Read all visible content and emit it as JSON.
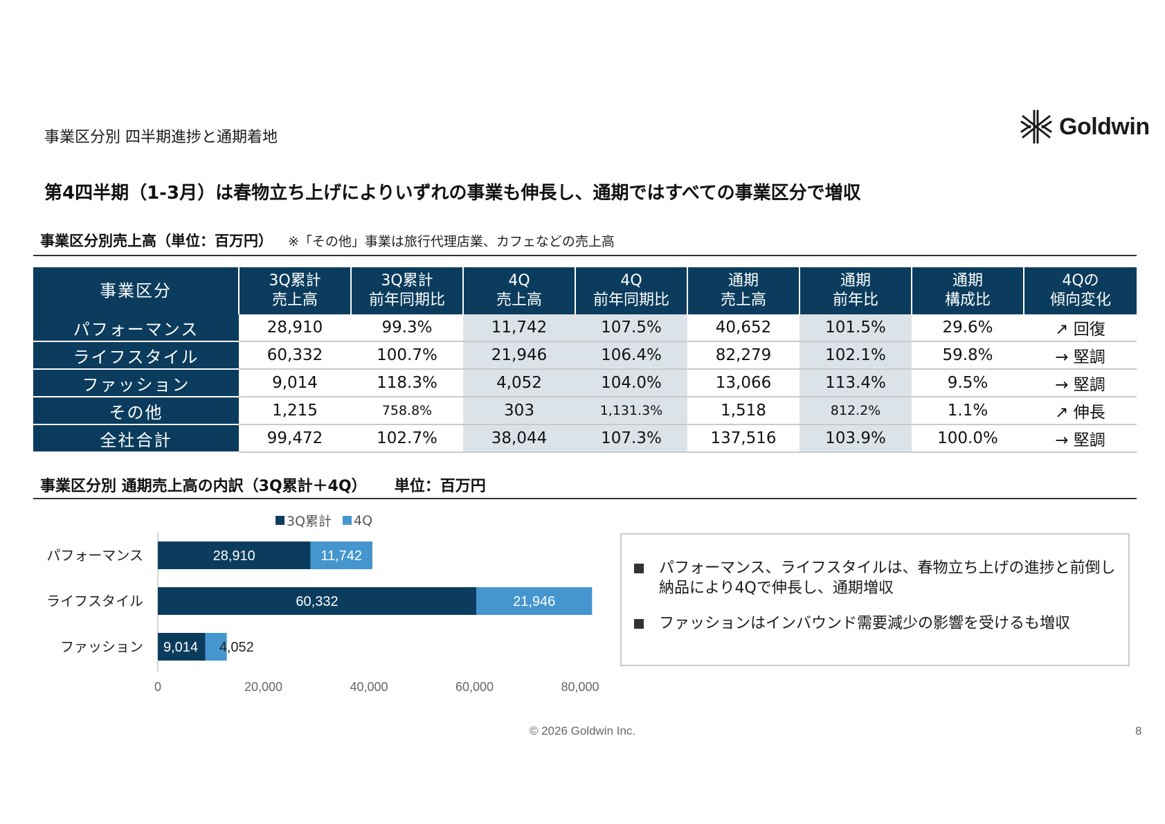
{
  "header": {
    "section_label": "事業区分別 四半期進捗と通期着地",
    "logo_text": "Goldwin",
    "headline": "第4四半期（1-3月）は春物立ち上げによりいずれの事業も伸長し、通期ではすべての事業区分で増収"
  },
  "table_section": {
    "title": "事業区分別売上高（単位：百万円）",
    "note": "※「その他」事業は旅行代理店業、カフェなどの売上高"
  },
  "table": {
    "headers": [
      "事業区分",
      "3Q累計\n売上高",
      "3Q累計\n前年同期比",
      "4Q\n売上高",
      "4Q\n前年同期比",
      "通期\n売上高",
      "通期\n前年比",
      "通期\n構成比",
      "4Qの\n傾向変化"
    ],
    "rows": [
      [
        "パフォーマンス",
        "28,910",
        "99.3%",
        "11,742",
        "107.5%",
        "40,652",
        "101.5%",
        "29.6%",
        "↗ 回復"
      ],
      [
        "ライフスタイル",
        "60,332",
        "100.7%",
        "21,946",
        "106.4%",
        "82,279",
        "102.1%",
        "59.8%",
        "→ 堅調"
      ],
      [
        "ファッション",
        "9,014",
        "118.3%",
        "4,052",
        "104.0%",
        "13,066",
        "113.4%",
        "9.5%",
        "→ 堅調"
      ],
      [
        "その他",
        "1,215",
        "758.8%",
        "303",
        "1,131.3%",
        "1,518",
        "812.2%",
        "1.1%",
        "↗ 伸長"
      ],
      [
        "全社合計",
        "99,472",
        "102.7%",
        "38,044",
        "107.3%",
        "137,516",
        "103.9%",
        "100.0%",
        "→ 堅調"
      ]
    ]
  },
  "chart_section": {
    "title": "事業区分別 通期売上高の内訳（3Q累計＋4Q）",
    "unit": "単位：百万円"
  },
  "chart_data": {
    "type": "bar",
    "orientation": "horizontal",
    "stacked": true,
    "categories": [
      "パフォーマンス",
      "ライフスタイル",
      "ファッション"
    ],
    "series": [
      {
        "name": "3Q累計",
        "values": [
          28910,
          60332,
          9014
        ],
        "color": "#0b3c5d",
        "labels": [
          "28,910",
          "60,332",
          "9,014"
        ]
      },
      {
        "name": "4Q",
        "values": [
          11742,
          21946,
          4052
        ],
        "color": "#4596cf",
        "labels": [
          "11,742",
          "21,946",
          "4,052"
        ]
      }
    ],
    "xlim": [
      0,
      80000
    ],
    "xticks": [
      "0",
      "20,000",
      "40,000",
      "60,000",
      "80,000"
    ],
    "xtick_values": [
      0,
      20000,
      40000,
      60000,
      80000
    ],
    "legend": "top",
    "grid": false
  },
  "notes": [
    "パフォーマンス、ライフスタイルは、春物立ち上げの進捗と前倒し納品により4Qで伸長し、通期増収",
    "ファッションはインバウンド需要減少の影響を受けるも増収"
  ],
  "colors": {
    "navy": "#0b3c5d",
    "light_blue": "#4596cf",
    "highlight": "#dce3e8"
  },
  "footer": {
    "copyright": "© 2026 Goldwin Inc.",
    "page_number": "8"
  }
}
